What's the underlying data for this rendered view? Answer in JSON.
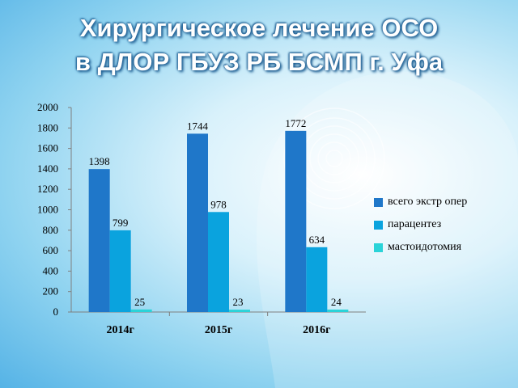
{
  "slide": {
    "title_line1": "Хирургическое лечение ОСО",
    "title_line2": "в ДЛОР ГБУЗ РБ БСМП г. Уфа"
  },
  "chart_data": {
    "type": "bar",
    "categories": [
      "2014г",
      "2015г",
      "2016г"
    ],
    "series": [
      {
        "name": "всего экстр опер",
        "values": [
          1398,
          1744,
          1772
        ],
        "color": "#1f77c9"
      },
      {
        "name": "парацентез",
        "values": [
          799,
          978,
          634
        ],
        "color": "#0aa3de"
      },
      {
        "name": "мастоидотомия",
        "values": [
          25,
          23,
          24
        ],
        "color": "#2ad3d8"
      }
    ],
    "ylim": [
      0,
      2000
    ],
    "yticks": [
      0,
      200,
      400,
      600,
      800,
      1000,
      1200,
      1400,
      1600,
      1800,
      2000
    ],
    "grid": false,
    "legend_position": "right",
    "data_labels": true,
    "title": "",
    "xlabel": "",
    "ylabel": ""
  }
}
